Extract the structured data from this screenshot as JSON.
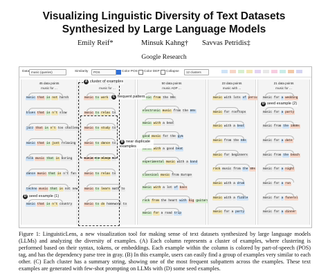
{
  "paper": {
    "title_line1": "Visualizing Linguistic Diversity of Text Datasets",
    "title_line2": "Synthesized by Large Language Models",
    "authors": [
      "Emily Reif*",
      "Minsuk Kahng†",
      "Savvas Petridis‡"
    ],
    "affiliation": "Google Research"
  },
  "toolbar": {
    "data_label": "Data",
    "data_value": "music (queries)",
    "similarity_label": "Similarity",
    "similarity_value": "POS",
    "color_pos": "Color POS",
    "color_dep": "Color DEP",
    "collapse": "Collapse",
    "clusters": "12 clusters"
  },
  "columns": [
    {
      "header": "45 data points",
      "summary": "music for ... ",
      "examples": [
        [
          "music",
          "that",
          "is",
          "not",
          "harsh"
        ],
        [
          "blues",
          "that",
          "is",
          "n't",
          "slow"
        ],
        [
          "jazz",
          "that",
          "is",
          "n't",
          "too",
          "challenging"
        ],
        [
          "music",
          "that",
          "is",
          "just",
          "relaxing"
        ],
        [
          "folk",
          "music",
          "that",
          "is",
          "boring"
        ],
        [
          "dance",
          "music",
          "that",
          "is",
          "n't",
          "fun"
        ],
        [
          "techno",
          "music",
          "that",
          "is",
          "not",
          "new"
        ],
        [
          "music",
          "that",
          "is",
          "n't",
          "country"
        ]
      ]
    },
    {
      "header": "40 data points",
      "summary": "music for ...",
      "examples": [
        [
          "music",
          "to",
          "work",
          "to"
        ],
        [
          "music",
          "to",
          "relax",
          "to"
        ],
        [
          "music",
          "to",
          "study",
          "to"
        ],
        [
          "music",
          "to",
          "dance",
          "to"
        ],
        [
          "music",
          "to",
          "sleep",
          "to"
        ],
        [
          "music",
          "to",
          "relax",
          "to"
        ],
        [
          "music",
          "to",
          "learn",
          "math",
          "to"
        ],
        [
          "music",
          "to",
          "do",
          "homework",
          "to"
        ]
      ]
    },
    {
      "header": "50 data points",
      "summary": "music ADP ...",
      "examples": [
        [
          "music",
          "from",
          "the",
          "90s"
        ],
        [
          "electronic",
          "music",
          "from",
          "the",
          "80s"
        ],
        [
          "music",
          "with",
          "a",
          "beat"
        ],
        [
          "good",
          "music",
          "for",
          "the",
          "gym"
        ],
        [
          "music",
          "with",
          "a",
          "good",
          "beat"
        ],
        [
          "experimental",
          "music",
          "with",
          "a",
          "band"
        ],
        [
          "classical",
          "music",
          "from",
          "Europe"
        ],
        [
          "music",
          "with",
          "a",
          "lot",
          "of",
          "bass"
        ],
        [
          "rock",
          "from",
          "the",
          "heart",
          "with",
          "big",
          "guitars"
        ],
        [
          "music",
          "for",
          "a",
          "road",
          "trip"
        ]
      ]
    },
    {
      "header": "23 data points",
      "summary": "music with ...",
      "examples": [
        [
          "music",
          "with",
          "lots",
          "of",
          "percussion"
        ],
        [
          "music",
          "for",
          "rooftops"
        ],
        [
          "music",
          "with",
          "a",
          "beat"
        ],
        [
          "music",
          "from",
          "the",
          "60s"
        ],
        [
          "music",
          "for",
          "beginners"
        ],
        [
          "rock",
          "music",
          "from",
          "the",
          "80s"
        ],
        [
          "music",
          "with",
          "a",
          "drum"
        ],
        [
          "music",
          "with",
          "a",
          "fiddle"
        ],
        [
          "music",
          "for",
          "a",
          "party"
        ]
      ]
    },
    {
      "header": "21 data points",
      "summary": "music for ...",
      "examples": [
        [
          "music",
          "for",
          "a",
          "wedding"
        ],
        [
          "music",
          "for",
          "a",
          "party"
        ],
        [
          "music",
          "from",
          "the",
          "1980s"
        ],
        [
          "music",
          "for",
          "a",
          "date"
        ],
        [
          "music",
          "from",
          "the",
          "beach"
        ],
        [
          "music",
          "for",
          "a",
          "night"
        ],
        [
          "music",
          "for",
          "a",
          "run"
        ],
        [
          "music",
          "for",
          "a",
          "funeral"
        ],
        [
          "music",
          "for",
          "a",
          "dinner"
        ]
      ]
    }
  ],
  "callouts": {
    "a": "cluster of examples",
    "b": "near duplicate examples",
    "c": "frequent pattern",
    "d": "seed example (1)",
    "e": "seed example (2)"
  },
  "caption": {
    "text": "Figure 1: LinguisticLens, a new visualization tool for making sense of text datasets synthesized by large language models (LLMs) and analyzing the diversity of examples. (A) Each column represents a cluster of examples, where clustering is performed based on their syntax, tokens, or embeddings. Each example within the column is colored by part-of-speech (POS) tag, and has the dependency parse tree in gray. (B) In this example, users can easily find a group of examples very similar to each other. (C) Each cluster has a summary string, showing one of the most frequent subpattern across the examples. These text examples are generated with few-shot prompting on LLMs with (D) some seed examples."
  }
}
